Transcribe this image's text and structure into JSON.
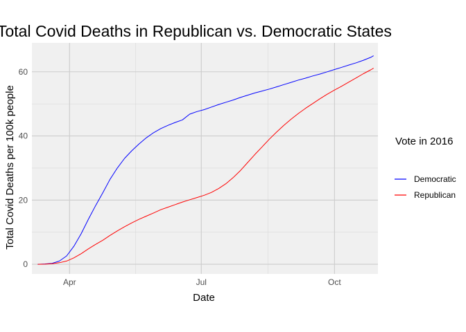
{
  "chart_data": {
    "type": "line",
    "title": "Total Covid Deaths in Republican vs. Democratic States",
    "xlabel": "Date",
    "ylabel": "Total Covid Deaths per 100k people",
    "x_axis_type": "date",
    "x_ticks": [
      {
        "date": "2020-04-01",
        "label": "Apr"
      },
      {
        "date": "2020-07-01",
        "label": "Jul"
      },
      {
        "date": "2020-10-01",
        "label": "Oct"
      }
    ],
    "y_ticks": [
      0,
      20,
      40,
      60
    ],
    "xlim": [
      "2020-03-06",
      "2020-10-31"
    ],
    "ylim": [
      -3,
      69
    ],
    "grid": true,
    "legend": {
      "title": "Vote in 2016",
      "position": "right"
    },
    "series": [
      {
        "name": "Democratic",
        "color": "#0000ff",
        "points": [
          [
            "2020-03-10",
            0
          ],
          [
            "2020-03-15",
            0.1
          ],
          [
            "2020-03-20",
            0.3
          ],
          [
            "2020-03-25",
            1.0
          ],
          [
            "2020-03-30",
            2.6
          ],
          [
            "2020-04-04",
            5.6
          ],
          [
            "2020-04-09",
            9.5
          ],
          [
            "2020-04-14",
            14.0
          ],
          [
            "2020-04-19",
            18.3
          ],
          [
            "2020-04-24",
            22.3
          ],
          [
            "2020-04-29",
            26.5
          ],
          [
            "2020-05-04",
            30.0
          ],
          [
            "2020-05-09",
            33.0
          ],
          [
            "2020-05-14",
            35.4
          ],
          [
            "2020-05-19",
            37.5
          ],
          [
            "2020-05-24",
            39.4
          ],
          [
            "2020-05-29",
            41.0
          ],
          [
            "2020-06-03",
            42.3
          ],
          [
            "2020-06-08",
            43.3
          ],
          [
            "2020-06-13",
            44.2
          ],
          [
            "2020-06-18",
            45.0
          ],
          [
            "2020-06-23",
            46.8
          ],
          [
            "2020-06-28",
            47.6
          ],
          [
            "2020-07-03",
            48.2
          ],
          [
            "2020-07-08",
            49.0
          ],
          [
            "2020-07-13",
            49.8
          ],
          [
            "2020-07-18",
            50.5
          ],
          [
            "2020-07-23",
            51.2
          ],
          [
            "2020-07-28",
            52.0
          ],
          [
            "2020-08-02",
            52.7
          ],
          [
            "2020-08-07",
            53.4
          ],
          [
            "2020-08-12",
            54.0
          ],
          [
            "2020-08-17",
            54.6
          ],
          [
            "2020-08-22",
            55.3
          ],
          [
            "2020-08-27",
            56.0
          ],
          [
            "2020-09-01",
            56.7
          ],
          [
            "2020-09-06",
            57.4
          ],
          [
            "2020-09-11",
            58.0
          ],
          [
            "2020-09-16",
            58.7
          ],
          [
            "2020-09-21",
            59.3
          ],
          [
            "2020-09-26",
            60.0
          ],
          [
            "2020-10-01",
            60.7
          ],
          [
            "2020-10-06",
            61.4
          ],
          [
            "2020-10-11",
            62.1
          ],
          [
            "2020-10-16",
            62.8
          ],
          [
            "2020-10-21",
            63.6
          ],
          [
            "2020-10-26",
            64.5
          ],
          [
            "2020-10-28",
            65.0
          ]
        ]
      },
      {
        "name": "Republican",
        "color": "#ff0000",
        "points": [
          [
            "2020-03-10",
            0
          ],
          [
            "2020-03-15",
            0.05
          ],
          [
            "2020-03-20",
            0.2
          ],
          [
            "2020-03-25",
            0.5
          ],
          [
            "2020-03-30",
            1.0
          ],
          [
            "2020-04-04",
            2.0
          ],
          [
            "2020-04-09",
            3.3
          ],
          [
            "2020-04-14",
            4.8
          ],
          [
            "2020-04-19",
            6.2
          ],
          [
            "2020-04-24",
            7.5
          ],
          [
            "2020-04-29",
            9.0
          ],
          [
            "2020-05-04",
            10.4
          ],
          [
            "2020-05-09",
            11.7
          ],
          [
            "2020-05-14",
            12.9
          ],
          [
            "2020-05-19",
            14.0
          ],
          [
            "2020-05-24",
            15.0
          ],
          [
            "2020-05-29",
            16.0
          ],
          [
            "2020-06-03",
            17.0
          ],
          [
            "2020-06-08",
            17.8
          ],
          [
            "2020-06-13",
            18.6
          ],
          [
            "2020-06-18",
            19.4
          ],
          [
            "2020-06-23",
            20.1
          ],
          [
            "2020-06-28",
            20.8
          ],
          [
            "2020-07-03",
            21.5
          ],
          [
            "2020-07-08",
            22.4
          ],
          [
            "2020-07-13",
            23.6
          ],
          [
            "2020-07-18",
            25.1
          ],
          [
            "2020-07-23",
            27.0
          ],
          [
            "2020-07-28",
            29.2
          ],
          [
            "2020-08-02",
            31.7
          ],
          [
            "2020-08-07",
            34.2
          ],
          [
            "2020-08-12",
            36.6
          ],
          [
            "2020-08-17",
            39.0
          ],
          [
            "2020-08-22",
            41.2
          ],
          [
            "2020-08-27",
            43.3
          ],
          [
            "2020-09-01",
            45.2
          ],
          [
            "2020-09-06",
            47.0
          ],
          [
            "2020-09-11",
            48.6
          ],
          [
            "2020-09-16",
            50.1
          ],
          [
            "2020-09-21",
            51.6
          ],
          [
            "2020-09-26",
            53.0
          ],
          [
            "2020-10-01",
            54.3
          ],
          [
            "2020-10-06",
            55.5
          ],
          [
            "2020-10-11",
            56.8
          ],
          [
            "2020-10-16",
            58.1
          ],
          [
            "2020-10-21",
            59.4
          ],
          [
            "2020-10-26",
            60.6
          ],
          [
            "2020-10-28",
            61.1
          ]
        ]
      }
    ]
  }
}
